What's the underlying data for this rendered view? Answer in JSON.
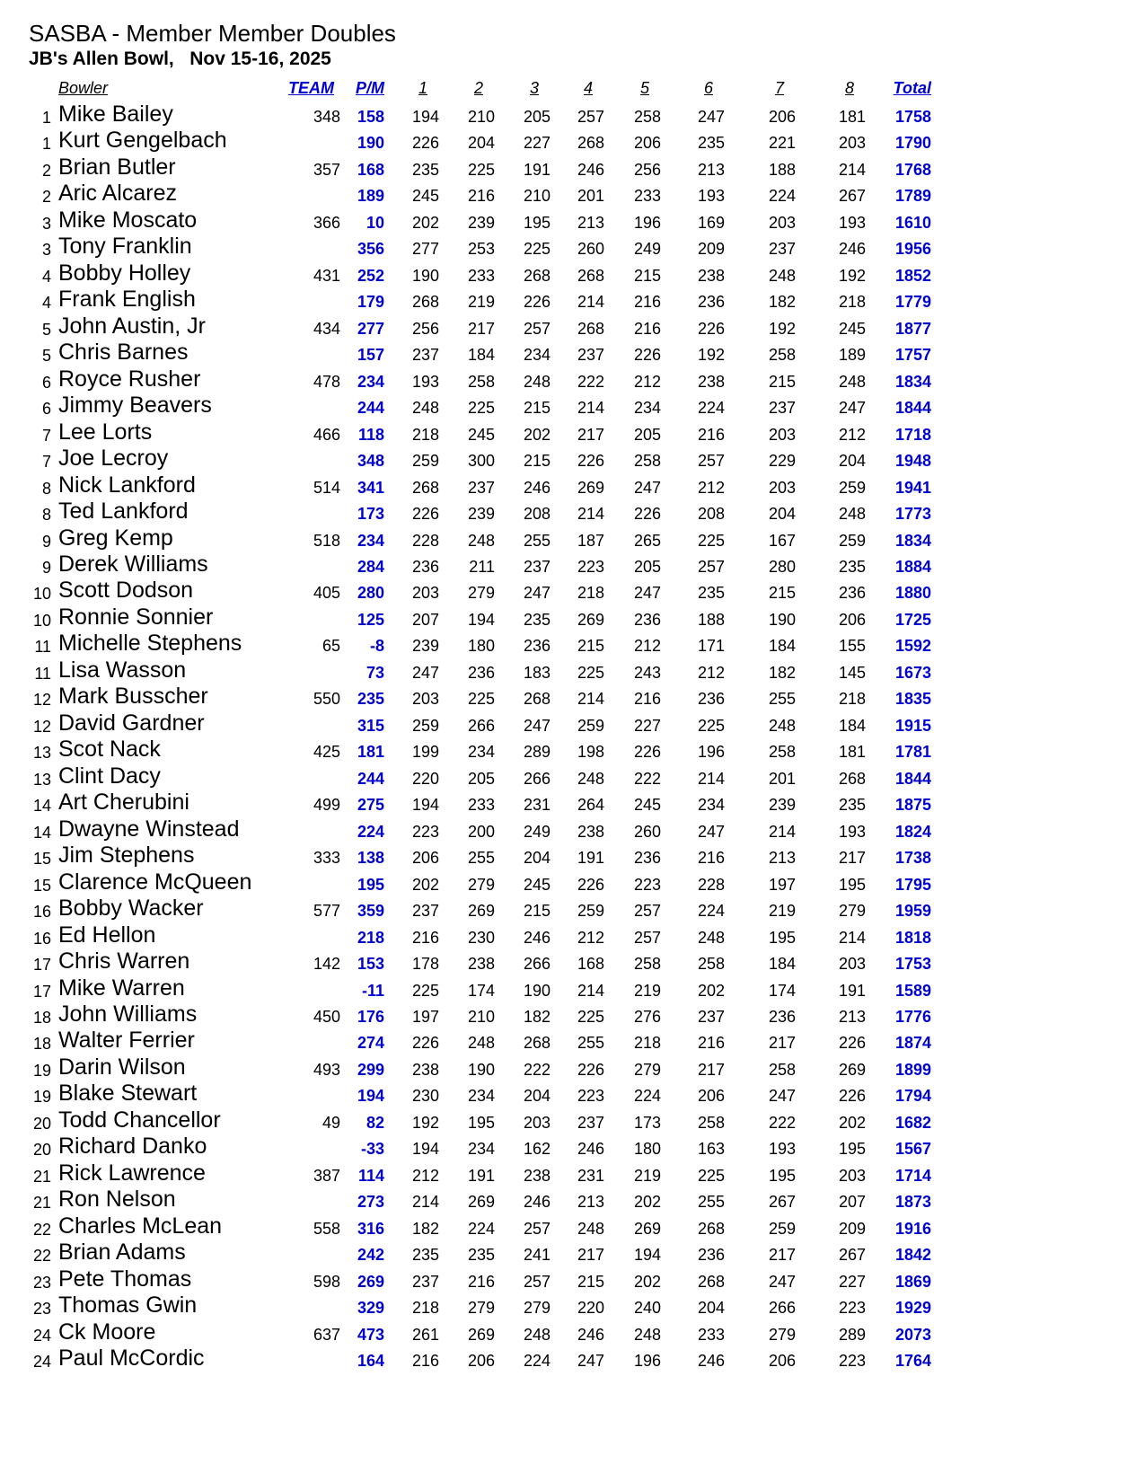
{
  "title": "SASBA - Member Member Doubles",
  "subtitle": "JB's Allen Bowl,   Nov 15-16, 2025",
  "accent_color": "#0000d0",
  "headers": {
    "bowler": "Bowler",
    "team": "TEAM",
    "pm": "P/M",
    "g1": "1",
    "g2": "2",
    "g3": "3",
    "g4": "4",
    "g5": "5",
    "g6": "6",
    "g7": "7",
    "g8": "8",
    "total": "Total"
  },
  "rows": [
    {
      "rank": "1",
      "name": "Mike Bailey",
      "team": "348",
      "pm": "158",
      "games": [
        "194",
        "210",
        "205",
        "257",
        "258",
        "247",
        "206",
        "181"
      ],
      "total": "1758"
    },
    {
      "rank": "1",
      "name": "Kurt Gengelbach",
      "team": "",
      "pm": "190",
      "games": [
        "226",
        "204",
        "227",
        "268",
        "206",
        "235",
        "221",
        "203"
      ],
      "total": "1790"
    },
    {
      "rank": "2",
      "name": "Brian Butler",
      "team": "357",
      "pm": "168",
      "games": [
        "235",
        "225",
        "191",
        "246",
        "256",
        "213",
        "188",
        "214"
      ],
      "total": "1768"
    },
    {
      "rank": "2",
      "name": "Aric Alcarez",
      "team": "",
      "pm": "189",
      "games": [
        "245",
        "216",
        "210",
        "201",
        "233",
        "193",
        "224",
        "267"
      ],
      "total": "1789"
    },
    {
      "rank": "3",
      "name": "Mike Moscato",
      "team": "366",
      "pm": "10",
      "games": [
        "202",
        "239",
        "195",
        "213",
        "196",
        "169",
        "203",
        "193"
      ],
      "total": "1610"
    },
    {
      "rank": "3",
      "name": "Tony Franklin",
      "team": "",
      "pm": "356",
      "games": [
        "277",
        "253",
        "225",
        "260",
        "249",
        "209",
        "237",
        "246"
      ],
      "total": "1956"
    },
    {
      "rank": "4",
      "name": "Bobby Holley",
      "team": "431",
      "pm": "252",
      "games": [
        "190",
        "233",
        "268",
        "268",
        "215",
        "238",
        "248",
        "192"
      ],
      "total": "1852"
    },
    {
      "rank": "4",
      "name": "Frank English",
      "team": "",
      "pm": "179",
      "games": [
        "268",
        "219",
        "226",
        "214",
        "216",
        "236",
        "182",
        "218"
      ],
      "total": "1779"
    },
    {
      "rank": "5",
      "name": "John Austin, Jr",
      "team": "434",
      "pm": "277",
      "games": [
        "256",
        "217",
        "257",
        "268",
        "216",
        "226",
        "192",
        "245"
      ],
      "total": "1877"
    },
    {
      "rank": "5",
      "name": "Chris Barnes",
      "team": "",
      "pm": "157",
      "games": [
        "237",
        "184",
        "234",
        "237",
        "226",
        "192",
        "258",
        "189"
      ],
      "total": "1757"
    },
    {
      "rank": "6",
      "name": "Royce Rusher",
      "team": "478",
      "pm": "234",
      "games": [
        "193",
        "258",
        "248",
        "222",
        "212",
        "238",
        "215",
        "248"
      ],
      "total": "1834"
    },
    {
      "rank": "6",
      "name": "Jimmy Beavers",
      "team": "",
      "pm": "244",
      "games": [
        "248",
        "225",
        "215",
        "214",
        "234",
        "224",
        "237",
        "247"
      ],
      "total": "1844"
    },
    {
      "rank": "7",
      "name": "Lee Lorts",
      "team": "466",
      "pm": "118",
      "games": [
        "218",
        "245",
        "202",
        "217",
        "205",
        "216",
        "203",
        "212"
      ],
      "total": "1718"
    },
    {
      "rank": "7",
      "name": "Joe Lecroy",
      "team": "",
      "pm": "348",
      "games": [
        "259",
        "300",
        "215",
        "226",
        "258",
        "257",
        "229",
        "204"
      ],
      "total": "1948"
    },
    {
      "rank": "8",
      "name": "Nick Lankford",
      "team": "514",
      "pm": "341",
      "games": [
        "268",
        "237",
        "246",
        "269",
        "247",
        "212",
        "203",
        "259"
      ],
      "total": "1941"
    },
    {
      "rank": "8",
      "name": "Ted Lankford",
      "team": "",
      "pm": "173",
      "games": [
        "226",
        "239",
        "208",
        "214",
        "226",
        "208",
        "204",
        "248"
      ],
      "total": "1773"
    },
    {
      "rank": "9",
      "name": "Greg Kemp",
      "team": "518",
      "pm": "234",
      "games": [
        "228",
        "248",
        "255",
        "187",
        "265",
        "225",
        "167",
        "259"
      ],
      "total": "1834"
    },
    {
      "rank": "9",
      "name": "Derek Williams",
      "team": "",
      "pm": "284",
      "games": [
        "236",
        "211",
        "237",
        "223",
        "205",
        "257",
        "280",
        "235"
      ],
      "total": "1884"
    },
    {
      "rank": "10",
      "name": "Scott Dodson",
      "team": "405",
      "pm": "280",
      "games": [
        "203",
        "279",
        "247",
        "218",
        "247",
        "235",
        "215",
        "236"
      ],
      "total": "1880"
    },
    {
      "rank": "10",
      "name": "Ronnie Sonnier",
      "team": "",
      "pm": "125",
      "games": [
        "207",
        "194",
        "235",
        "269",
        "236",
        "188",
        "190",
        "206"
      ],
      "total": "1725"
    },
    {
      "rank": "11",
      "name": "Michelle Stephens",
      "team": "65",
      "pm": "-8",
      "games": [
        "239",
        "180",
        "236",
        "215",
        "212",
        "171",
        "184",
        "155"
      ],
      "total": "1592"
    },
    {
      "rank": "11",
      "name": "Lisa Wasson",
      "team": "",
      "pm": "73",
      "games": [
        "247",
        "236",
        "183",
        "225",
        "243",
        "212",
        "182",
        "145"
      ],
      "total": "1673"
    },
    {
      "rank": "12",
      "name": "Mark Busscher",
      "team": "550",
      "pm": "235",
      "games": [
        "203",
        "225",
        "268",
        "214",
        "216",
        "236",
        "255",
        "218"
      ],
      "total": "1835"
    },
    {
      "rank": "12",
      "name": "David Gardner",
      "team": "",
      "pm": "315",
      "games": [
        "259",
        "266",
        "247",
        "259",
        "227",
        "225",
        "248",
        "184"
      ],
      "total": "1915"
    },
    {
      "rank": "13",
      "name": "Scot Nack",
      "team": "425",
      "pm": "181",
      "games": [
        "199",
        "234",
        "289",
        "198",
        "226",
        "196",
        "258",
        "181"
      ],
      "total": "1781"
    },
    {
      "rank": "13",
      "name": "Clint Dacy",
      "team": "",
      "pm": "244",
      "games": [
        "220",
        "205",
        "266",
        "248",
        "222",
        "214",
        "201",
        "268"
      ],
      "total": "1844"
    },
    {
      "rank": "14",
      "name": "Art Cherubini",
      "team": "499",
      "pm": "275",
      "games": [
        "194",
        "233",
        "231",
        "264",
        "245",
        "234",
        "239",
        "235"
      ],
      "total": "1875"
    },
    {
      "rank": "14",
      "name": "Dwayne Winstead",
      "team": "",
      "pm": "224",
      "games": [
        "223",
        "200",
        "249",
        "238",
        "260",
        "247",
        "214",
        "193"
      ],
      "total": "1824"
    },
    {
      "rank": "15",
      "name": "Jim Stephens",
      "team": "333",
      "pm": "138",
      "games": [
        "206",
        "255",
        "204",
        "191",
        "236",
        "216",
        "213",
        "217"
      ],
      "total": "1738"
    },
    {
      "rank": "15",
      "name": "Clarence McQueen",
      "team": "",
      "pm": "195",
      "games": [
        "202",
        "279",
        "245",
        "226",
        "223",
        "228",
        "197",
        "195"
      ],
      "total": "1795"
    },
    {
      "rank": "16",
      "name": "Bobby Wacker",
      "team": "577",
      "pm": "359",
      "games": [
        "237",
        "269",
        "215",
        "259",
        "257",
        "224",
        "219",
        "279"
      ],
      "total": "1959"
    },
    {
      "rank": "16",
      "name": "Ed Hellon",
      "team": "",
      "pm": "218",
      "games": [
        "216",
        "230",
        "246",
        "212",
        "257",
        "248",
        "195",
        "214"
      ],
      "total": "1818"
    },
    {
      "rank": "17",
      "name": "Chris Warren",
      "team": "142",
      "pm": "153",
      "games": [
        "178",
        "238",
        "266",
        "168",
        "258",
        "258",
        "184",
        "203"
      ],
      "total": "1753"
    },
    {
      "rank": "17",
      "name": "Mike Warren",
      "team": "",
      "pm": "-11",
      "games": [
        "225",
        "174",
        "190",
        "214",
        "219",
        "202",
        "174",
        "191"
      ],
      "total": "1589"
    },
    {
      "rank": "18",
      "name": "John Williams",
      "team": "450",
      "pm": "176",
      "games": [
        "197",
        "210",
        "182",
        "225",
        "276",
        "237",
        "236",
        "213"
      ],
      "total": "1776"
    },
    {
      "rank": "18",
      "name": "Walter Ferrier",
      "team": "",
      "pm": "274",
      "games": [
        "226",
        "248",
        "268",
        "255",
        "218",
        "216",
        "217",
        "226"
      ],
      "total": "1874"
    },
    {
      "rank": "19",
      "name": "Darin Wilson",
      "team": "493",
      "pm": "299",
      "games": [
        "238",
        "190",
        "222",
        "226",
        "279",
        "217",
        "258",
        "269"
      ],
      "total": "1899"
    },
    {
      "rank": "19",
      "name": "Blake Stewart",
      "team": "",
      "pm": "194",
      "games": [
        "230",
        "234",
        "204",
        "223",
        "224",
        "206",
        "247",
        "226"
      ],
      "total": "1794"
    },
    {
      "rank": "20",
      "name": "Todd Chancellor",
      "team": "49",
      "pm": "82",
      "games": [
        "192",
        "195",
        "203",
        "237",
        "173",
        "258",
        "222",
        "202"
      ],
      "total": "1682"
    },
    {
      "rank": "20",
      "name": "Richard Danko",
      "team": "",
      "pm": "-33",
      "games": [
        "194",
        "234",
        "162",
        "246",
        "180",
        "163",
        "193",
        "195"
      ],
      "total": "1567"
    },
    {
      "rank": "21",
      "name": "Rick Lawrence",
      "team": "387",
      "pm": "114",
      "games": [
        "212",
        "191",
        "238",
        "231",
        "219",
        "225",
        "195",
        "203"
      ],
      "total": "1714"
    },
    {
      "rank": "21",
      "name": "Ron Nelson",
      "team": "",
      "pm": "273",
      "games": [
        "214",
        "269",
        "246",
        "213",
        "202",
        "255",
        "267",
        "207"
      ],
      "total": "1873"
    },
    {
      "rank": "22",
      "name": "Charles McLean",
      "team": "558",
      "pm": "316",
      "games": [
        "182",
        "224",
        "257",
        "248",
        "269",
        "268",
        "259",
        "209"
      ],
      "total": "1916"
    },
    {
      "rank": "22",
      "name": "Brian Adams",
      "team": "",
      "pm": "242",
      "games": [
        "235",
        "235",
        "241",
        "217",
        "194",
        "236",
        "217",
        "267"
      ],
      "total": "1842"
    },
    {
      "rank": "23",
      "name": "Pete Thomas",
      "team": "598",
      "pm": "269",
      "games": [
        "237",
        "216",
        "257",
        "215",
        "202",
        "268",
        "247",
        "227"
      ],
      "total": "1869"
    },
    {
      "rank": "23",
      "name": "Thomas Gwin",
      "team": "",
      "pm": "329",
      "games": [
        "218",
        "279",
        "279",
        "220",
        "240",
        "204",
        "266",
        "223"
      ],
      "total": "1929"
    },
    {
      "rank": "24",
      "name": "Ck Moore",
      "team": "637",
      "pm": "473",
      "games": [
        "261",
        "269",
        "248",
        "246",
        "248",
        "233",
        "279",
        "289"
      ],
      "total": "2073"
    },
    {
      "rank": "24",
      "name": "Paul McCordic",
      "team": "",
      "pm": "164",
      "games": [
        "216",
        "206",
        "224",
        "247",
        "196",
        "246",
        "206",
        "223"
      ],
      "total": "1764"
    }
  ]
}
